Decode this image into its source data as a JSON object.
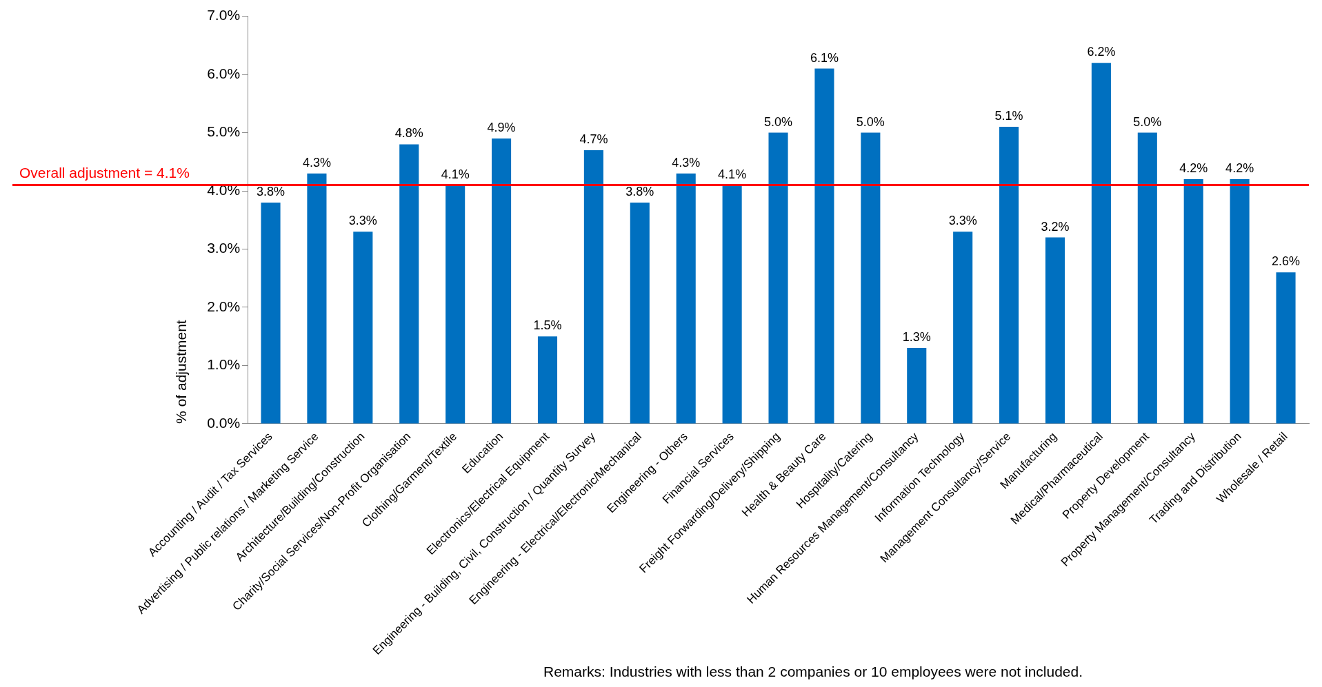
{
  "chart_data": {
    "type": "bar",
    "ylabel": "% of adjustment",
    "categories": [
      "Accounting / Audit / Tax Services",
      "Advertising / Public relations / Marketing Service",
      "Architecture/Building/Construction",
      "Charity/Social Services/Non-Profit Organisation",
      "Clothing/Garment/Textile",
      "Education",
      "Electronics/Electrical Equipment",
      "Engineering - Building, Civil, Construction / Quantity Survey",
      "Engineering - Electrical/Electronic/Mechanical",
      "Engineering - Others",
      "Financial Services",
      "Freight Forwarding/Delivery/Shipping",
      "Health & Beauty Care",
      "Hospitality/Catering",
      "Human Resources Management/Consultancy",
      "Information Technology",
      "Management Consultancy/Service",
      "Manufacturing",
      "Medical/Pharmaceutical",
      "Property Development",
      "Property Management/Consultancy",
      "Trading and Distribution",
      "Wholesale / Retail"
    ],
    "values": [
      3.8,
      4.3,
      3.3,
      4.8,
      4.1,
      4.9,
      1.5,
      4.7,
      3.8,
      4.3,
      4.1,
      5.0,
      6.1,
      5.0,
      1.3,
      3.3,
      5.1,
      3.2,
      6.2,
      5.0,
      4.2,
      4.2,
      2.6
    ],
    "value_labels": [
      "3.8%",
      "4.3%",
      "3.3%",
      "4.8%",
      "4.1%",
      "4.9%",
      "1.5%",
      "4.7%",
      "3.8%",
      "4.3%",
      "4.1%",
      "5.0%",
      "6.1%",
      "5.0%",
      "1.3%",
      "3.3%",
      "5.1%",
      "3.2%",
      "6.2%",
      "5.0%",
      "4.2%",
      "4.2%",
      "2.6%"
    ],
    "color": "#0070c0",
    "ylim": [
      0,
      7
    ],
    "yticks": [
      {
        "value": 0,
        "label": "0.0%"
      },
      {
        "value": 1,
        "label": "1.0%"
      },
      {
        "value": 2,
        "label": "2.0%"
      },
      {
        "value": 3,
        "label": "3.0%"
      },
      {
        "value": 4,
        "label": "4.0%"
      },
      {
        "value": 5,
        "label": "5.0%"
      },
      {
        "value": 6,
        "label": "6.0%"
      },
      {
        "value": 7,
        "label": "7.0%"
      }
    ],
    "grid": false,
    "legend": false,
    "ref_lines": [
      {
        "axis": "y",
        "value": 4.1,
        "label": "Overall adjustment = 4.1%",
        "color": "#ff0000",
        "line_style": "solid"
      }
    ],
    "annotations": [
      "Remarks: Industries with less than 2 companies or 10 employees were not included."
    ]
  }
}
